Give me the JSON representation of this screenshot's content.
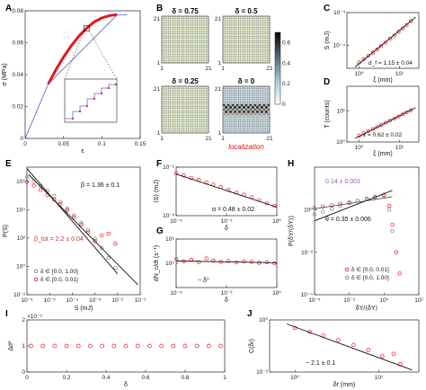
{
  "figure_labels": [
    "A",
    "B",
    "C",
    "D",
    "E",
    "F",
    "G",
    "H",
    "I",
    "J"
  ],
  "chart_data": [
    {
      "panel": "A",
      "type": "line",
      "xlabel": "ε",
      "ylabel": "σ (MPa)",
      "xlim": [
        0,
        0.15
      ],
      "ylim": [
        0,
        0.08
      ],
      "xticks": [
        0,
        0.05,
        0.1,
        0.15
      ],
      "yticks": [
        0,
        0.02,
        0.04,
        0.06,
        0.08
      ],
      "series": [
        {
          "color": "#e8151b",
          "x": [
            0.03,
            0.04,
            0.05,
            0.06,
            0.07,
            0.08,
            0.09,
            0.1,
            0.11,
            0.12
          ],
          "y": [
            0.034,
            0.043,
            0.051,
            0.058,
            0.064,
            0.069,
            0.073,
            0.0755,
            0.077,
            0.0775
          ]
        },
        {
          "color": "#5b6fd6",
          "x": [
            0,
            0.03,
            0.12,
            0.133
          ],
          "y": [
            0,
            0.034,
            0.0775,
            0.0775
          ]
        }
      ]
    },
    {
      "panel": "B",
      "type": "heatmap",
      "maps": [
        {
          "label": "δ = 0.75"
        },
        {
          "label": "δ = 0.5"
        },
        {
          "label": "δ = 0.25"
        },
        {
          "label": "δ = 0"
        }
      ],
      "axis_ticks": [
        "1",
        "21"
      ],
      "colorbar_ticks": [
        0,
        0.2,
        0.4,
        0.6
      ],
      "annotation": "localization",
      "annotation_color": "#e8151b"
    },
    {
      "panel": "C",
      "type": "scatter",
      "xlabel": "ξ (mm)",
      "ylabel": "S (mJ)",
      "log": true,
      "xlim": [
        0.5,
        30
      ],
      "ylim": [
        2e-05,
        0.001
      ],
      "xtick_labels": [
        "10⁰",
        "10¹"
      ],
      "ytick_labels": [
        "10⁻⁴",
        "10⁻³"
      ],
      "annotation": "d_f = 1.15 ± 0.04",
      "x": [
        1,
        1.3,
        1.7,
        2.2,
        2.8,
        3.5,
        4.5,
        5.8,
        7.5,
        9.5,
        12,
        15,
        19
      ],
      "y": [
        3e-05,
        3.8e-05,
        4.8e-05,
        6e-05,
        7.5e-05,
        9.5e-05,
        0.00012,
        0.00016,
        0.0002,
        0.00026,
        0.00033,
        0.00042,
        0.00055
      ]
    },
    {
      "panel": "D",
      "type": "scatter",
      "xlabel": "ξ (mm)",
      "ylabel": "T (counts)",
      "log": true,
      "xlim": [
        0.5,
        30
      ],
      "ylim": [
        1,
        60
      ],
      "xtick_labels": [
        "10⁰",
        "10¹"
      ],
      "ytick_labels": [
        "10⁰",
        "10¹"
      ],
      "annotation": "z = 0.62 ± 0.02",
      "x": [
        1,
        1.3,
        1.7,
        2.2,
        2.8,
        3.5,
        4.5,
        5.8,
        7.5,
        9.5,
        12,
        15,
        19
      ],
      "y": [
        1.6,
        1.9,
        2.2,
        2.6,
        3,
        3.5,
        4.1,
        4.8,
        5.6,
        6.5,
        7.6,
        8.8,
        10.2
      ]
    },
    {
      "panel": "E",
      "type": "scatter",
      "xlabel": "S (mJ)",
      "ylabel": "P(S)",
      "log": true,
      "xlim": [
        1e-06,
        0.1
      ],
      "ylim": [
        0.01,
        10000000
      ],
      "xtick_labels": [
        "10⁻⁶",
        "10⁻⁵",
        "10⁻⁴",
        "10⁻³",
        "10⁻²",
        "10⁻¹"
      ],
      "ytick_labels": [
        "10⁻²",
        "10⁰",
        "10²",
        "10⁴",
        "10⁶"
      ],
      "annotations": [
        "β = 1.36 ± 0.1",
        "β_tot = 2.2 ± 0.04"
      ],
      "legend": [
        "δ ∈ [0.0, 1.00]",
        "δ ∈ [0.0, 0.01]"
      ],
      "series": [
        {
          "name": "δ ∈ [0.0, 1.00]",
          "color": "#7a7a7a",
          "x": [
            1e-06,
            2e-06,
            4e-06,
            8e-06,
            1.6e-05,
            3e-05,
            6e-05,
            0.00012,
            0.00025,
            0.0005,
            0.001,
            0.002,
            0.004,
            0.008
          ],
          "y": [
            2000000,
            1000000,
            500000,
            220000,
            90000,
            35000,
            12000,
            4000,
            1200,
            350,
            90,
            20,
            4,
            0.8
          ]
        },
        {
          "name": "δ ∈ [0.0, 0.01]",
          "color": "#e8151b",
          "x": [
            1e-06,
            2e-06,
            4e-06,
            8e-06,
            1.6e-05,
            3e-05,
            6e-05,
            0.00012,
            0.00025,
            0.0005,
            0.001,
            0.002,
            0.004,
            0.008
          ],
          "y": [
            900000,
            500000,
            250000,
            110000,
            50000,
            25000,
            9000,
            3000,
            900,
            250,
            60,
            150,
            200,
            40
          ]
        }
      ]
    },
    {
      "panel": "F",
      "type": "scatter",
      "xlabel": "δ",
      "ylabel": "⟨S⟩ (mJ)",
      "log": true,
      "xlim": [
        0.0001,
        1
      ],
      "ylim": [
        0.001,
        0.01
      ],
      "xtick_labels": [
        "10⁻⁴",
        "10⁻²",
        "10⁰"
      ],
      "ytick_labels": [
        "10⁻³",
        "10⁻²"
      ],
      "annotation": "α = 0.48 ± 0.02",
      "x": [
        0.0001,
        0.0002,
        0.0004,
        0.0008,
        0.0016,
        0.003,
        0.006,
        0.012,
        0.025,
        0.05,
        0.1,
        0.2,
        0.4,
        0.8
      ],
      "y": [
        0.0075,
        0.0068,
        0.006,
        0.0055,
        0.0049,
        0.0044,
        0.0039,
        0.0034,
        0.003,
        0.0027,
        0.0024,
        0.0021,
        0.0018,
        0.0016
      ]
    },
    {
      "panel": "G",
      "type": "scatter",
      "xlabel": "δ",
      "ylabel": "dN_c/dt (s⁻¹)",
      "log": true,
      "xlim": [
        0.0001,
        1
      ],
      "ylim": [
        10000,
        1000000
      ],
      "xtick_labels": [
        "10⁻⁴",
        "10⁻²",
        "10⁰"
      ],
      "ytick_labels": [
        "10⁵",
        "10⁶"
      ],
      "annotation": "~ δ⁰",
      "x": [
        0.0001,
        0.0002,
        0.0004,
        0.0008,
        0.0016,
        0.003,
        0.006,
        0.012,
        0.025,
        0.05,
        0.1,
        0.2,
        0.4,
        0.8
      ],
      "y": [
        150000,
        120000,
        140000,
        110000,
        160000,
        130000,
        115000,
        125000,
        110000,
        120000,
        115000,
        105000,
        110000,
        100000
      ]
    },
    {
      "panel": "H",
      "type": "scatter",
      "xlabel": "δY/⟨δY⟩",
      "ylabel": "P(δY/⟨δY⟩)",
      "log": true,
      "xlim": [
        0.0001,
        100
      ],
      "ylim": [
        0.0001,
        100
      ],
      "xtick_labels": [
        "10⁻⁴",
        "10⁻²",
        "10⁰",
        "10²"
      ],
      "ytick_labels": [
        "10⁻⁴",
        "10⁻²",
        "10⁰"
      ],
      "annotations": [
        "0.14 ± 0.003",
        "θ = 0.35 ± 0.006"
      ],
      "legend": [
        "δ ∈ [0.0, 0.01]",
        "δ ∈ [0.0, 1.00]"
      ],
      "series": [
        {
          "name": "δ ∈ [0.0, 0.01]",
          "color": "#e8151b",
          "x": [
            0.0001,
            0.0003,
            0.001,
            0.003,
            0.01,
            0.03,
            0.1,
            0.3,
            1,
            2,
            3,
            5,
            8
          ],
          "y": [
            1.2,
            1.4,
            1.6,
            1.9,
            2.2,
            2.6,
            3.1,
            3.8,
            5,
            1.5,
            0.2,
            0.01,
            0.001
          ]
        },
        {
          "name": "δ ∈ [0.0, 1.00]",
          "color": "#7a7a7a",
          "x": [
            0.0001,
            0.0003,
            0.001,
            0.003,
            0.01,
            0.03,
            0.1,
            0.3,
            1,
            2,
            3
          ],
          "y": [
            0.6,
            0.8,
            1.1,
            1.5,
            2,
            2.6,
            3.3,
            4,
            4.5,
            1,
            0.1
          ]
        }
      ]
    },
    {
      "panel": "I",
      "type": "scatter",
      "xlabel": "δ",
      "ylabel": "Δd*",
      "y_exponent": "×10⁻³",
      "xlim": [
        0,
        1
      ],
      "ylim": [
        0,
        2
      ],
      "xticks": [
        0,
        0.2,
        0.4,
        0.6,
        0.8,
        1
      ],
      "yticks": [
        0,
        1,
        2
      ],
      "x": [
        0.02,
        0.08,
        0.14,
        0.2,
        0.26,
        0.32,
        0.38,
        0.44,
        0.5,
        0.56,
        0.62,
        0.68,
        0.74,
        0.8,
        0.86,
        0.92,
        0.98
      ],
      "y": [
        1,
        1,
        1,
        1,
        1,
        1,
        1,
        1,
        1,
        1,
        1,
        1,
        1,
        1,
        1,
        1,
        1
      ]
    },
    {
      "panel": "J",
      "type": "scatter",
      "xlabel": "δr (mm)",
      "ylabel": "C(δr)",
      "log": true,
      "xlim": [
        0.5,
        30
      ],
      "ylim": [
        0.01,
        1
      ],
      "xtick_labels": [
        "10⁰",
        "10¹"
      ],
      "ytick_labels": [
        "10⁻²",
        "10⁰"
      ],
      "annotation": "~ 2.1 ± 0.1",
      "x": [
        1,
        1.5,
        2.2,
        3.3,
        5,
        7.5,
        11,
        15,
        18
      ],
      "y": [
        0.5,
        0.35,
        0.25,
        0.17,
        0.11,
        0.07,
        0.04,
        0.05,
        0.02
      ]
    }
  ]
}
